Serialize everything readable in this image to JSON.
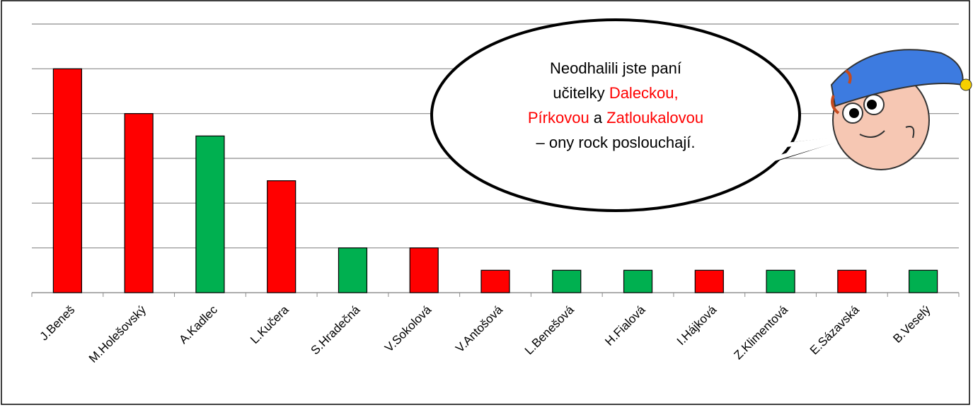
{
  "chart_data": {
    "type": "bar",
    "categories": [
      "J.Beneš",
      "M.Holešovský",
      "A.Kadlec",
      "L.Kučera",
      "S.Hradečná",
      "V.Sokolová",
      "V.Antošová",
      "L.Benešová",
      "H.Fialová",
      "I.Hájková",
      "Z.Klimentová",
      "E.Sázavská",
      "B.Veselý"
    ],
    "values": [
      5,
      4,
      3.5,
      2.5,
      1,
      1,
      0.5,
      0.5,
      0.5,
      0.5,
      0.5,
      0.5,
      0.5
    ],
    "colors": [
      "#ff0000",
      "#ff0000",
      "#00b050",
      "#ff0000",
      "#00b050",
      "#ff0000",
      "#ff0000",
      "#00b050",
      "#00b050",
      "#ff0000",
      "#00b050",
      "#ff0000",
      "#00b050"
    ],
    "ylim": [
      0,
      6
    ],
    "yticks": [
      0,
      1,
      2,
      3,
      4,
      5,
      6
    ],
    "grid": true,
    "annotation": [
      [
        {
          "text": "Neodhalili jste paní"
        }
      ],
      [
        {
          "text": "učitelky "
        },
        {
          "text": "Daleckou,",
          "color": "#ff0000"
        }
      ],
      [
        {
          "text": "Pírkovou",
          "color": "#ff0000"
        },
        {
          "text": " a "
        },
        {
          "text": "Zatloukalovou",
          "color": "#ff0000"
        }
      ],
      [
        {
          "text": "– ony rock poslouchají."
        }
      ]
    ]
  }
}
